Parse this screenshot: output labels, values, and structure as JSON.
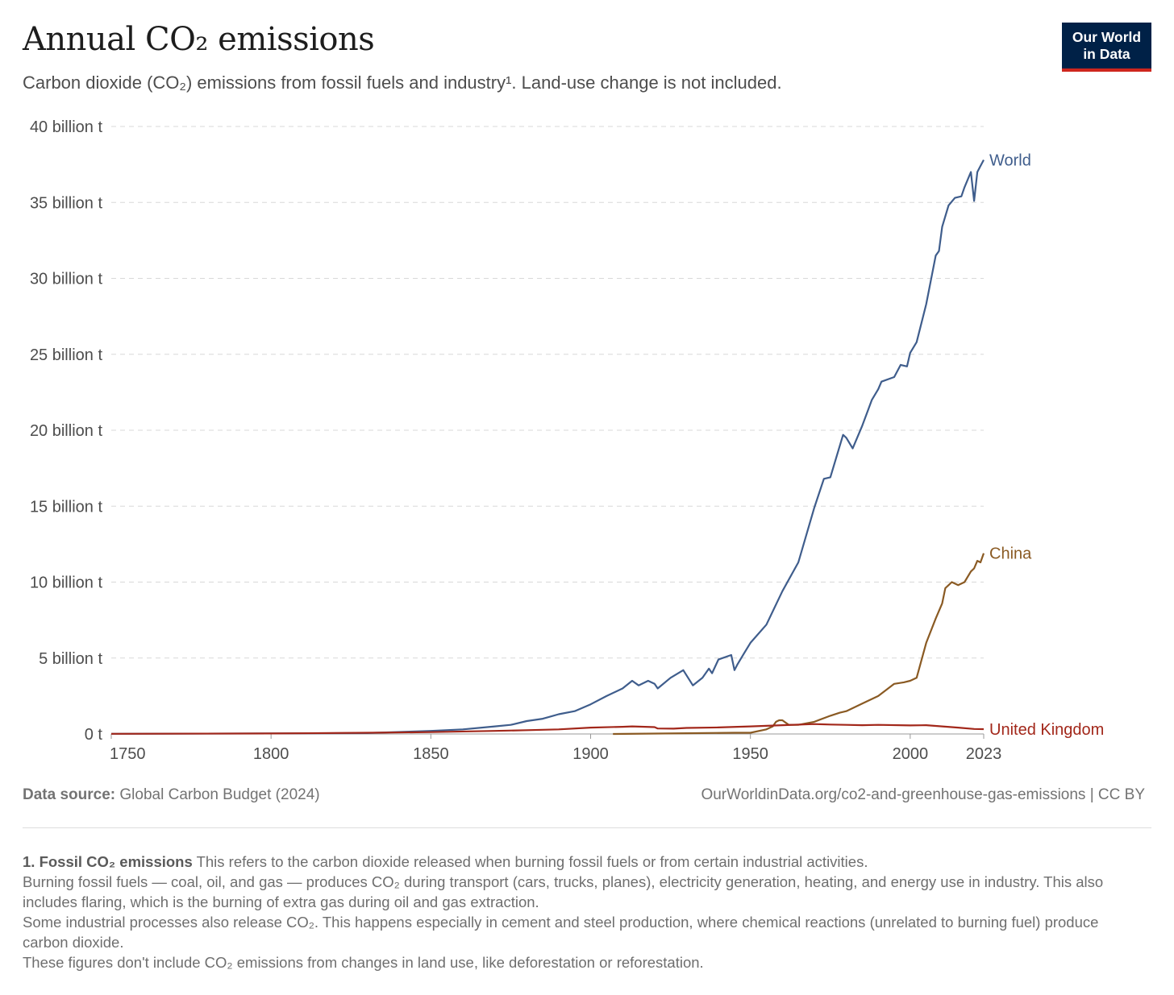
{
  "header": {
    "title": "Annual CO₂ emissions",
    "subtitle": "Carbon dioxide (CO₂) emissions from fossil fuels and industry¹. Land-use change is not included.",
    "logo_line1": "Our World",
    "logo_line2": "in Data"
  },
  "colors": {
    "World": "#3f5d8c",
    "China": "#8a5a23",
    "United Kingdom": "#a2271a",
    "grid": "#d8d8d8",
    "logo_bg": "#002147",
    "logo_accent": "#ce261e"
  },
  "chart_data": {
    "type": "line",
    "title": "Annual CO₂ emissions",
    "subtitle": "Carbon dioxide (CO₂) emissions from fossil fuels and industry¹. Land-use change is not included.",
    "ylabel": "",
    "xlabel": "",
    "xlim": [
      1750,
      2023
    ],
    "ylim": [
      0,
      40
    ],
    "unit": "billion t",
    "y_ticks": [
      0,
      5,
      10,
      15,
      20,
      25,
      30,
      35,
      40
    ],
    "y_tick_labels": [
      "0 t",
      "5 billion t",
      "10 billion t",
      "15 billion t",
      "20 billion t",
      "25 billion t",
      "30 billion t",
      "35 billion t",
      "40 billion t"
    ],
    "x_ticks": [
      1750,
      1800,
      1850,
      1900,
      1950,
      2000,
      2023
    ],
    "grid": "horizontal dashed",
    "legend": "inline labels at line ends (right)",
    "series": [
      {
        "name": "World",
        "x": [
          1750,
          1800,
          1830,
          1850,
          1860,
          1870,
          1875,
          1880,
          1885,
          1890,
          1895,
          1900,
          1905,
          1910,
          1913,
          1915,
          1918,
          1920,
          1921,
          1925,
          1929,
          1932,
          1935,
          1937,
          1938,
          1940,
          1944,
          1945,
          1946,
          1948,
          1950,
          1955,
          1960,
          1965,
          1970,
          1973,
          1975,
          1979,
          1980,
          1982,
          1985,
          1988,
          1990,
          1991,
          1995,
          1997,
          1999,
          2000,
          2002,
          2005,
          2008,
          2009,
          2010,
          2012,
          2014,
          2016,
          2017,
          2019,
          2020,
          2021,
          2022,
          2023
        ],
        "y": [
          0.01,
          0.03,
          0.06,
          0.2,
          0.3,
          0.5,
          0.6,
          0.85,
          1.0,
          1.3,
          1.5,
          1.95,
          2.5,
          3.0,
          3.5,
          3.2,
          3.5,
          3.3,
          3.0,
          3.7,
          4.2,
          3.2,
          3.7,
          4.3,
          4.0,
          4.9,
          5.2,
          4.2,
          4.6,
          5.3,
          6.0,
          7.2,
          9.4,
          11.3,
          14.9,
          16.8,
          16.9,
          19.7,
          19.5,
          18.8,
          20.3,
          22.0,
          22.7,
          23.2,
          23.5,
          24.3,
          24.2,
          25.1,
          25.8,
          28.3,
          31.5,
          31.8,
          33.4,
          34.8,
          35.3,
          35.4,
          36.0,
          37.0,
          35.1,
          37.0,
          37.4,
          37.8
        ]
      },
      {
        "name": "China",
        "x": [
          1907,
          1930,
          1945,
          1950,
          1955,
          1957,
          1958,
          1959,
          1960,
          1962,
          1965,
          1970,
          1975,
          1978,
          1980,
          1985,
          1990,
          1995,
          1998,
          2000,
          2002,
          2005,
          2008,
          2010,
          2011,
          2012,
          2013,
          2015,
          2017,
          2019,
          2020,
          2021,
          2022,
          2023
        ],
        "y": [
          0.0,
          0.05,
          0.08,
          0.08,
          0.3,
          0.5,
          0.8,
          0.9,
          0.9,
          0.6,
          0.6,
          0.8,
          1.2,
          1.4,
          1.5,
          2.0,
          2.5,
          3.3,
          3.4,
          3.5,
          3.7,
          6.0,
          7.6,
          8.6,
          9.6,
          9.8,
          10.0,
          9.8,
          10.0,
          10.7,
          10.9,
          11.4,
          11.3,
          11.9
        ]
      },
      {
        "name": "United Kingdom",
        "x": [
          1750,
          1800,
          1830,
          1850,
          1870,
          1880,
          1890,
          1900,
          1910,
          1913,
          1920,
          1921,
          1926,
          1930,
          1940,
          1950,
          1960,
          1970,
          1975,
          1980,
          1985,
          1990,
          2000,
          2005,
          2010,
          2015,
          2020,
          2023
        ],
        "y": [
          0.01,
          0.03,
          0.08,
          0.12,
          0.2,
          0.25,
          0.3,
          0.42,
          0.47,
          0.5,
          0.45,
          0.36,
          0.35,
          0.4,
          0.43,
          0.5,
          0.58,
          0.65,
          0.62,
          0.6,
          0.58,
          0.6,
          0.56,
          0.58,
          0.5,
          0.42,
          0.33,
          0.32
        ]
      }
    ]
  },
  "footer": {
    "source_label": "Data source:",
    "source_value": "Global Carbon Budget (2024)",
    "url": "OurWorldinData.org/co2-and-greenhouse-gas-emissions",
    "license": "| CC BY"
  },
  "footnote": {
    "term": "1. Fossil CO₂ emissions",
    "definition": "This refers to the carbon dioxide released when burning fossil fuels or from certain industrial activities.",
    "para1": "Burning fossil fuels — coal, oil, and gas — produces CO₂ during transport (cars, trucks, planes), electricity generation, heating, and energy use in industry. This also includes flaring, which is the burning of extra gas during oil and gas extraction.",
    "para2": "Some industrial processes also release CO₂. This happens especially in cement and steel production, where chemical reactions (unrelated to burning fuel) produce carbon dioxide.",
    "para3": "These figures don't include CO₂ emissions from changes in land use, like deforestation or reforestation."
  }
}
